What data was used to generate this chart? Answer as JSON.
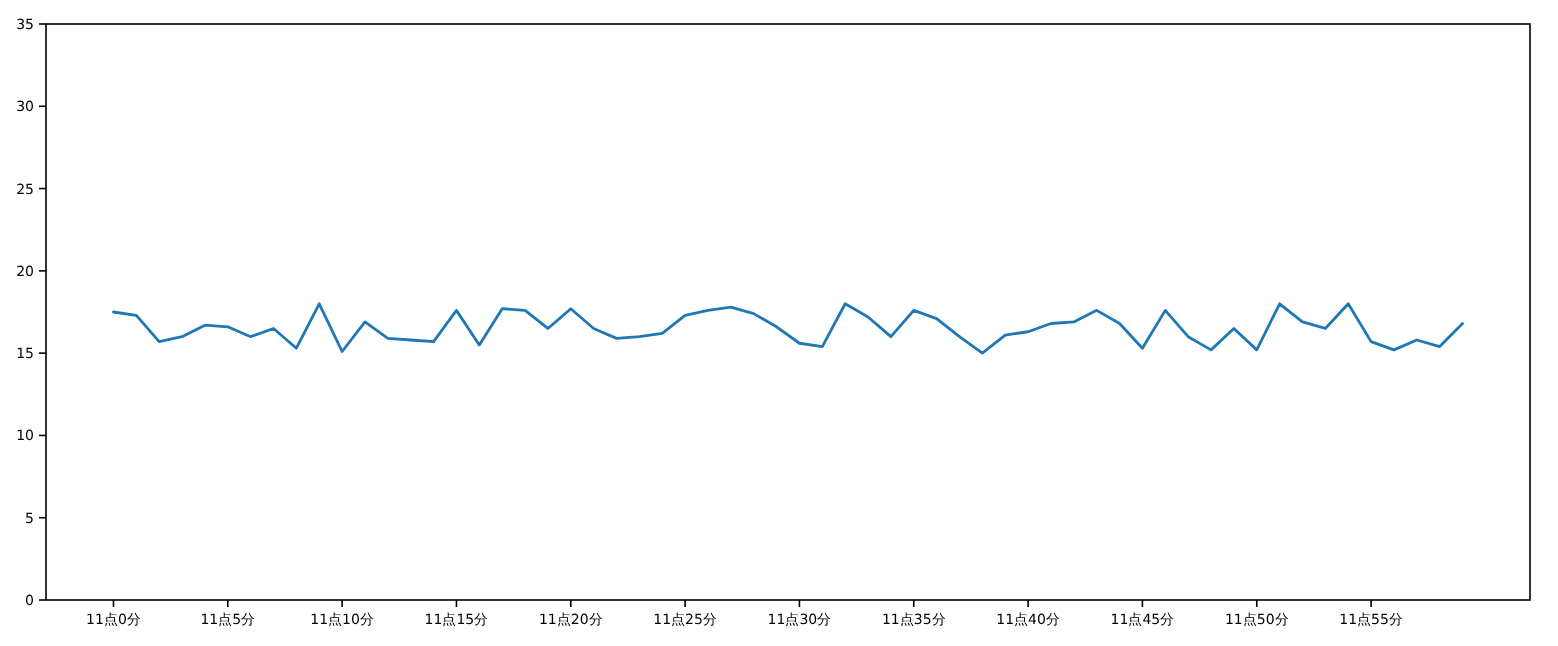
{
  "chart_data": {
    "type": "line",
    "categories": [
      "11点0分",
      null,
      null,
      null,
      null,
      "11点5分",
      null,
      null,
      null,
      null,
      "11点10分",
      null,
      null,
      null,
      null,
      "11点15分",
      null,
      null,
      null,
      null,
      "11点20分",
      null,
      null,
      null,
      null,
      "11点25分",
      null,
      null,
      null,
      null,
      "11点30分",
      null,
      null,
      null,
      null,
      "11点35分",
      null,
      null,
      null,
      null,
      "11点40分",
      null,
      null,
      null,
      null,
      "11点45分",
      null,
      null,
      null,
      null,
      "11点50分",
      null,
      null,
      null,
      null,
      "11点55分",
      null,
      null,
      null,
      null
    ],
    "series": [
      {
        "color": "#1f77b4",
        "values": [
          17.5,
          17.3,
          15.7,
          16.0,
          16.7,
          16.6,
          16.0,
          16.5,
          15.3,
          18.0,
          15.1,
          16.9,
          15.9,
          15.8,
          15.7,
          17.6,
          15.5,
          17.7,
          17.6,
          16.5,
          17.7,
          16.5,
          15.9,
          16.0,
          16.2,
          17.3,
          17.6,
          17.8,
          17.4,
          16.6,
          15.6,
          15.4,
          18.0,
          17.2,
          16.0,
          17.6,
          17.1,
          16.0,
          15.0,
          16.1,
          16.3,
          16.8,
          16.9,
          17.6,
          16.8,
          15.3,
          17.6,
          16.0,
          15.2,
          16.5,
          15.2,
          18.0,
          16.9,
          16.5,
          18.0,
          15.7,
          15.2,
          15.8,
          15.4,
          16.8
        ]
      }
    ],
    "ylim": [
      0,
      35
    ],
    "yticks": [
      0,
      5,
      10,
      15,
      20,
      25,
      30,
      35
    ],
    "grid": false
  }
}
